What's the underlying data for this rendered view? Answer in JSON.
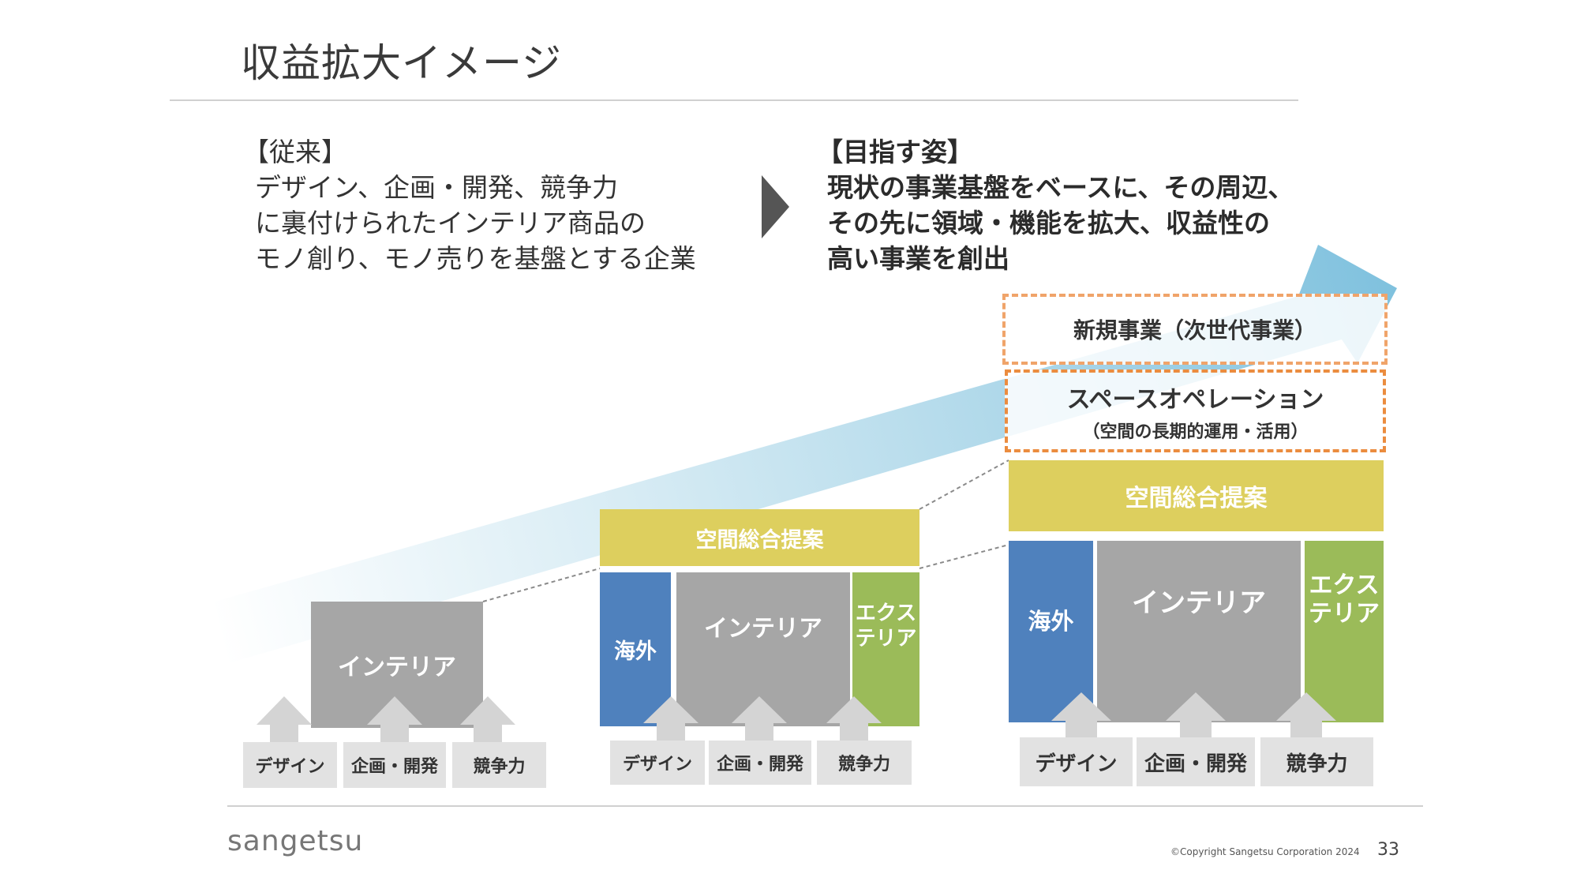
{
  "slide": {
    "title": "収益拡大イメージ",
    "page_number": "33",
    "copyright": "©Copyright Sangetsu Corporation 2024",
    "logo": "sangetsu"
  },
  "current": {
    "heading": "【従来】",
    "lines": [
      "デザイン、企画・開発、競争力",
      "に裏付けられたインテリア商品の",
      "モノ創り、モノ売りを基盤とする企業"
    ]
  },
  "goal": {
    "heading": "【目指す姿】",
    "lines": [
      "現状の事業基盤をベースに、その周辺、",
      "その先に領域・機能を拡大、収益性の",
      "高い事業を創出"
    ]
  },
  "stage1": {
    "core": "インテリア",
    "bases": [
      "デザイン",
      "企画・開発",
      "競争力"
    ]
  },
  "stage2": {
    "top": "空間総合提案",
    "left": "海外",
    "core": "インテリア",
    "right": "エクス\nテリア",
    "bases": [
      "デザイン",
      "企画・開発",
      "競争力"
    ]
  },
  "stage3": {
    "new_business": "新規事業（次世代事業）",
    "space_op_title": "スペースオペレーション",
    "space_op_sub": "（空間の長期的運用・活用）",
    "top": "空間総合提案",
    "left": "海外",
    "core": "インテリア",
    "right": "エクス\nテリア",
    "bases": [
      "デザイン",
      "企画・開発",
      "競争力"
    ]
  },
  "colors": {
    "gray": "#a6a6a6",
    "blue": "#4f81bd",
    "green": "#9bbb59",
    "yellow": "#ddcf5e",
    "orange_dashed": "#eb8c3f",
    "arrow": "#8ec8e0"
  },
  "icons": [
    "chevron-right-icon",
    "growth-arrow-icon",
    "up-arrow-icon"
  ]
}
